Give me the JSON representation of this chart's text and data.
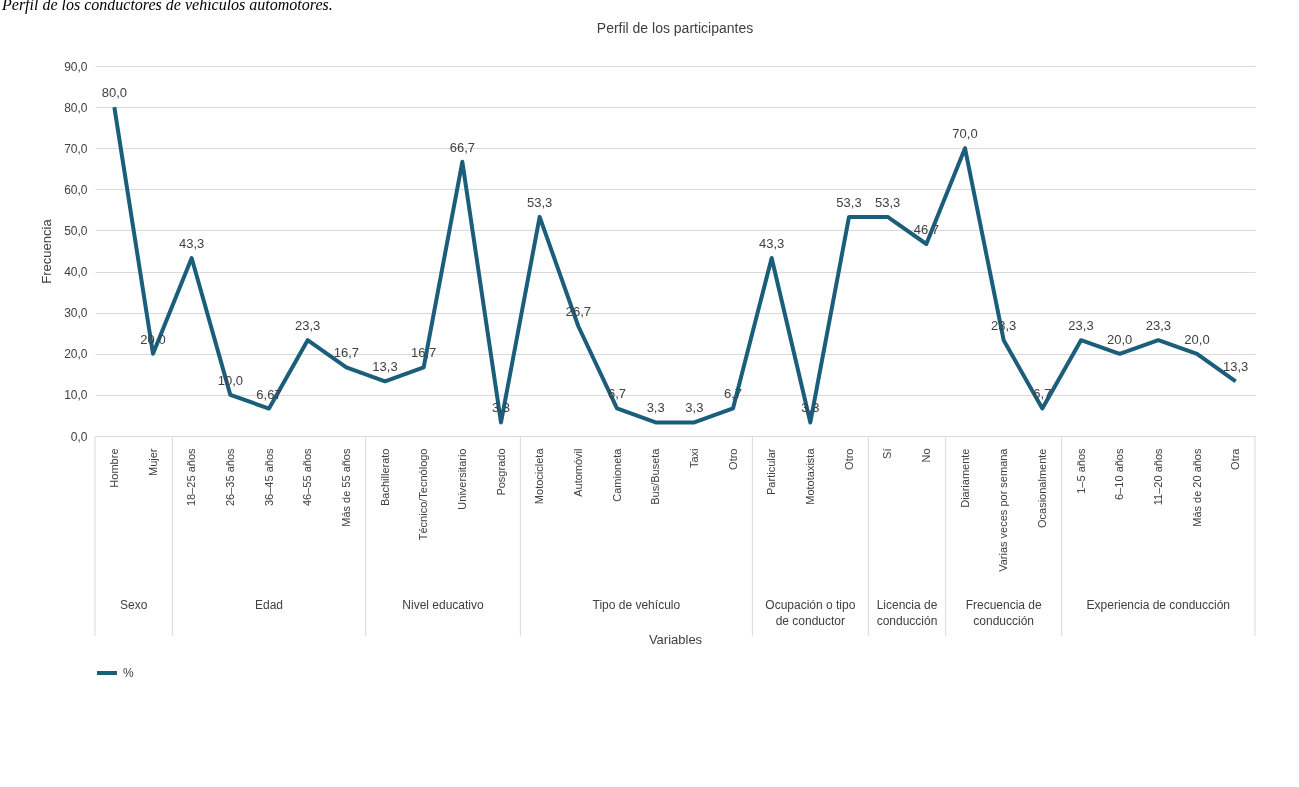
{
  "chart_data": {
    "type": "line",
    "title": "Perfil de los participantes",
    "xlabel": "Variables",
    "ylabel": "Frecuencia",
    "annotations": [
      "Perfil de los conductores de vehículos automotores.",
      "Sexo",
      "Edad",
      "Nivel educativo",
      "Tipo de vehículo",
      "Ocupación o tipo de conductor",
      "Licencia de conducción",
      "Frecuencia de conducción",
      "Experiencia de conducción"
    ],
    "categories": [
      "Hombre",
      "Mujer",
      "18–25 años",
      "26–35 años",
      "36–45 años",
      "46–55 años",
      "Más de 55 años",
      "Bachillerato",
      "Técnico/Tecnólogo",
      "Universitario",
      "Posgrado",
      "Motocicleta",
      "Automóvil",
      "Camioneta",
      "Bus/Buseta",
      "Taxi",
      "Otro",
      "Particular",
      "Mototaxista",
      "Otro",
      "Sí",
      "No",
      "Diariamente",
      "Varias veces por semana",
      "Ocasionalmente",
      "1–5 años",
      "6–10 años",
      "11–20 años",
      "Más de 20 años",
      "Otra"
    ],
    "series": [
      {
        "name": "%",
        "color": "#1b5e7b",
        "values": [
          80,
          20,
          43.3,
          10,
          6.67,
          23.3,
          16.7,
          13.3,
          16.7,
          66.7,
          3.3,
          53.3,
          26.7,
          6.7,
          3.3,
          3.3,
          6.7,
          43.3,
          3.3,
          53.3,
          53.3,
          46.7,
          70,
          23.3,
          6.7,
          23.3,
          20,
          23.3,
          20,
          13.3
        ],
        "value_labels": [
          "80,0",
          "20,0",
          "43,3",
          "10,0",
          "6,67",
          "23,3",
          "16,7",
          "13,3",
          "16,7",
          "66,7",
          "3,3",
          "53,3",
          "26,7",
          "6,7",
          "3,3",
          "3,3",
          "6,7",
          "43,3",
          "3,3",
          "53,3",
          "53,3",
          "46,7",
          "70,0",
          "23,3",
          "6,7",
          "23,3",
          "20,0",
          "23,3",
          "20,0",
          "13,3"
        ]
      }
    ],
    "ylim": [
      0,
      90
    ],
    "yticks": [
      {
        "value": 0,
        "label": "0,0"
      },
      {
        "value": 10,
        "label": "10,0"
      },
      {
        "value": 20,
        "label": "20,0"
      },
      {
        "value": 30,
        "label": "30,0"
      },
      {
        "value": 40,
        "label": "40,0"
      },
      {
        "value": 50,
        "label": "50,0"
      },
      {
        "value": 60,
        "label": "60,0"
      },
      {
        "value": 70,
        "label": "70,0"
      },
      {
        "value": 80,
        "label": "80,0"
      },
      {
        "value": 90,
        "label": "90,0"
      }
    ],
    "grid": "y",
    "legend": "bottom",
    "marker": "none",
    "line_style": "solid"
  }
}
